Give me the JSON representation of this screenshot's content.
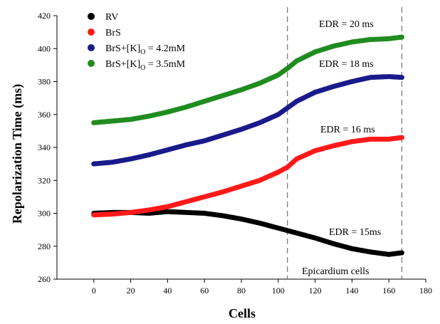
{
  "chart_data": {
    "type": "scatter",
    "xlabel": "Cells",
    "ylabel": "Repolarization Time (ms)",
    "xlim": [
      -20,
      180
    ],
    "ylim": [
      260,
      420
    ],
    "xticks": [
      0,
      20,
      40,
      60,
      80,
      100,
      120,
      140,
      160,
      180
    ],
    "yticks": [
      260,
      280,
      300,
      320,
      340,
      360,
      380,
      400,
      420
    ],
    "grid": false,
    "legend_position": "top-left",
    "vlines": [
      105,
      167
    ],
    "annotations": {
      "edr_green": "EDR = 20 ms",
      "edr_blue": "EDR = 18 ms",
      "edr_red": "EDR = 16 ms",
      "edr_black": "EDR = 15ms",
      "region": "Epicardium cells"
    },
    "series": [
      {
        "name": "RV",
        "legend_main": "RV",
        "legend_sub": "",
        "legend_tail": "",
        "color": "#000000",
        "x": [
          0,
          10,
          20,
          30,
          40,
          50,
          60,
          70,
          80,
          90,
          100,
          110,
          120,
          130,
          140,
          150,
          160,
          167
        ],
        "values": [
          300,
          300.5,
          300.5,
          300,
          301,
          300.5,
          300,
          298.5,
          296.5,
          294,
          291,
          288,
          285,
          281.5,
          278.5,
          276.5,
          275,
          276
        ]
      },
      {
        "name": "BrS",
        "legend_main": "BrS",
        "legend_sub": "",
        "legend_tail": "",
        "color": "#ff1a1a",
        "x": [
          0,
          10,
          20,
          30,
          40,
          50,
          60,
          70,
          80,
          90,
          100,
          105,
          110,
          120,
          130,
          140,
          150,
          160,
          167
        ],
        "values": [
          299,
          299.5,
          300.5,
          302,
          304,
          307,
          310,
          313,
          316.5,
          320,
          325,
          328,
          333,
          338,
          341,
          343.5,
          345,
          345,
          346
        ]
      },
      {
        "name": "BrS+[K]o = 4.2mM",
        "legend_main": "BrS+[K]",
        "legend_sub": "O",
        "legend_tail": " = 4.2mM",
        "color": "#1a1a8c",
        "x": [
          0,
          10,
          20,
          30,
          40,
          50,
          60,
          70,
          80,
          90,
          100,
          105,
          110,
          120,
          130,
          140,
          150,
          160,
          167
        ],
        "values": [
          330,
          331,
          333,
          335.5,
          338.5,
          341.5,
          344,
          347.5,
          351,
          355,
          360,
          364,
          368,
          373.5,
          377,
          380,
          382.5,
          383,
          382.5
        ]
      },
      {
        "name": "BrS+[K]o = 3.5mM",
        "legend_main": "BrS+[K]",
        "legend_sub": "O",
        "legend_tail": " = 3.5mM",
        "color": "#1f8c1f",
        "x": [
          0,
          10,
          20,
          30,
          40,
          50,
          60,
          70,
          80,
          90,
          100,
          105,
          110,
          120,
          130,
          140,
          150,
          160,
          167
        ],
        "values": [
          355,
          356,
          357,
          359,
          361.5,
          364.5,
          368,
          371.5,
          375,
          379,
          384,
          388,
          392.5,
          398,
          401.5,
          404,
          405.5,
          406,
          407
        ]
      }
    ]
  }
}
